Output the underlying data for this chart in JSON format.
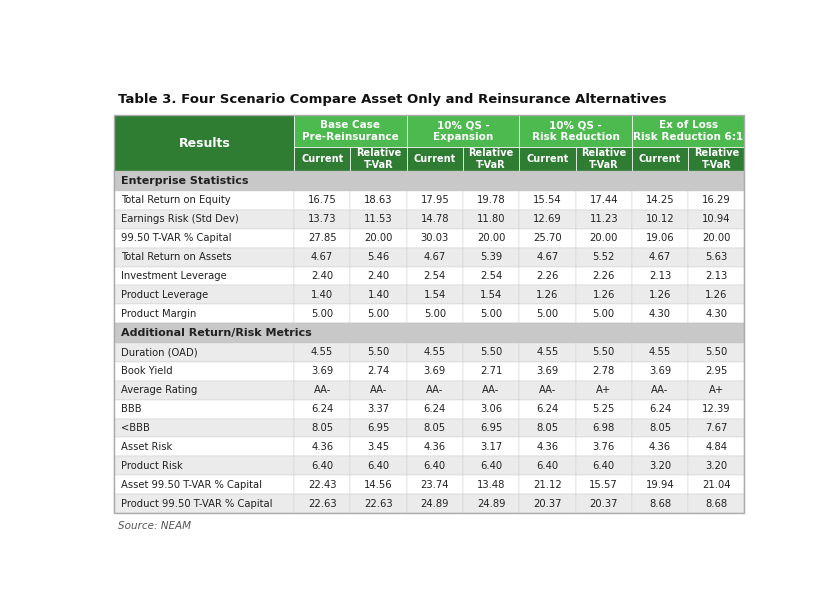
{
  "title": "Table 3. Four Scenario Compare Asset Only and Reinsurance Alternatives",
  "source": "Source: NEAM",
  "results_header": "Results",
  "section1_label": "Enterprise Statistics",
  "section2_label": "Additional Return/Risk Metrics",
  "group_labels": [
    "Base Case\nPre-Reinsurance",
    "10% QS -\nExpansion",
    "10% QS -\nRisk Reduction",
    "Ex of Loss\nRisk Reduction 6:1"
  ],
  "green_header": "#4cba4e",
  "dark_green": "#2e7d32",
  "section_bg": "#c8c8c8",
  "white": "#ffffff",
  "light_gray": "#ebebeb",
  "text_white": "#ffffff",
  "text_dark": "#222222",
  "rows": [
    {
      "label": "Total Return on Equity",
      "section": 1,
      "values": [
        "16.75",
        "18.63",
        "17.95",
        "19.78",
        "15.54",
        "17.44",
        "14.25",
        "16.29"
      ]
    },
    {
      "label": "Earnings Risk (Std Dev)",
      "section": 1,
      "values": [
        "13.73",
        "11.53",
        "14.78",
        "11.80",
        "12.69",
        "11.23",
        "10.12",
        "10.94"
      ]
    },
    {
      "label": "99.50 T-VAR % Capital",
      "section": 1,
      "values": [
        "27.85",
        "20.00",
        "30.03",
        "20.00",
        "25.70",
        "20.00",
        "19.06",
        "20.00"
      ]
    },
    {
      "label": "Total Return on Assets",
      "section": 1,
      "values": [
        "4.67",
        "5.46",
        "4.67",
        "5.39",
        "4.67",
        "5.52",
        "4.67",
        "5.63"
      ]
    },
    {
      "label": "Investment Leverage",
      "section": 1,
      "values": [
        "2.40",
        "2.40",
        "2.54",
        "2.54",
        "2.26",
        "2.26",
        "2.13",
        "2.13"
      ]
    },
    {
      "label": "Product Leverage",
      "section": 1,
      "values": [
        "1.40",
        "1.40",
        "1.54",
        "1.54",
        "1.26",
        "1.26",
        "1.26",
        "1.26"
      ]
    },
    {
      "label": "Product Margin",
      "section": 1,
      "values": [
        "5.00",
        "5.00",
        "5.00",
        "5.00",
        "5.00",
        "5.00",
        "4.30",
        "4.30"
      ]
    },
    {
      "label": "Duration (OAD)",
      "section": 2,
      "values": [
        "4.55",
        "5.50",
        "4.55",
        "5.50",
        "4.55",
        "5.50",
        "4.55",
        "5.50"
      ]
    },
    {
      "label": "Book Yield",
      "section": 2,
      "values": [
        "3.69",
        "2.74",
        "3.69",
        "2.71",
        "3.69",
        "2.78",
        "3.69",
        "2.95"
      ]
    },
    {
      "label": "Average Rating",
      "section": 2,
      "values": [
        "AA-",
        "AA-",
        "AA-",
        "AA-",
        "AA-",
        "A+",
        "AA-",
        "A+"
      ]
    },
    {
      "label": "BBB",
      "section": 2,
      "values": [
        "6.24",
        "3.37",
        "6.24",
        "3.06",
        "6.24",
        "5.25",
        "6.24",
        "12.39"
      ]
    },
    {
      "label": "<BBB",
      "section": 2,
      "values": [
        "8.05",
        "6.95",
        "8.05",
        "6.95",
        "8.05",
        "6.98",
        "8.05",
        "7.67"
      ]
    },
    {
      "label": "Asset Risk",
      "section": 2,
      "values": [
        "4.36",
        "3.45",
        "4.36",
        "3.17",
        "4.36",
        "3.76",
        "4.36",
        "4.84"
      ]
    },
    {
      "label": "Product Risk",
      "section": 2,
      "values": [
        "6.40",
        "6.40",
        "6.40",
        "6.40",
        "6.40",
        "6.40",
        "3.20",
        "3.20"
      ]
    },
    {
      "label": "Asset 99.50 T-VAR % Capital",
      "section": 2,
      "values": [
        "22.43",
        "14.56",
        "23.74",
        "13.48",
        "21.12",
        "15.57",
        "19.94",
        "21.04"
      ]
    },
    {
      "label": "Product 99.50 T-VAR % Capital",
      "section": 2,
      "values": [
        "22.63",
        "22.63",
        "24.89",
        "24.89",
        "20.37",
        "20.37",
        "8.68",
        "8.68"
      ]
    }
  ]
}
